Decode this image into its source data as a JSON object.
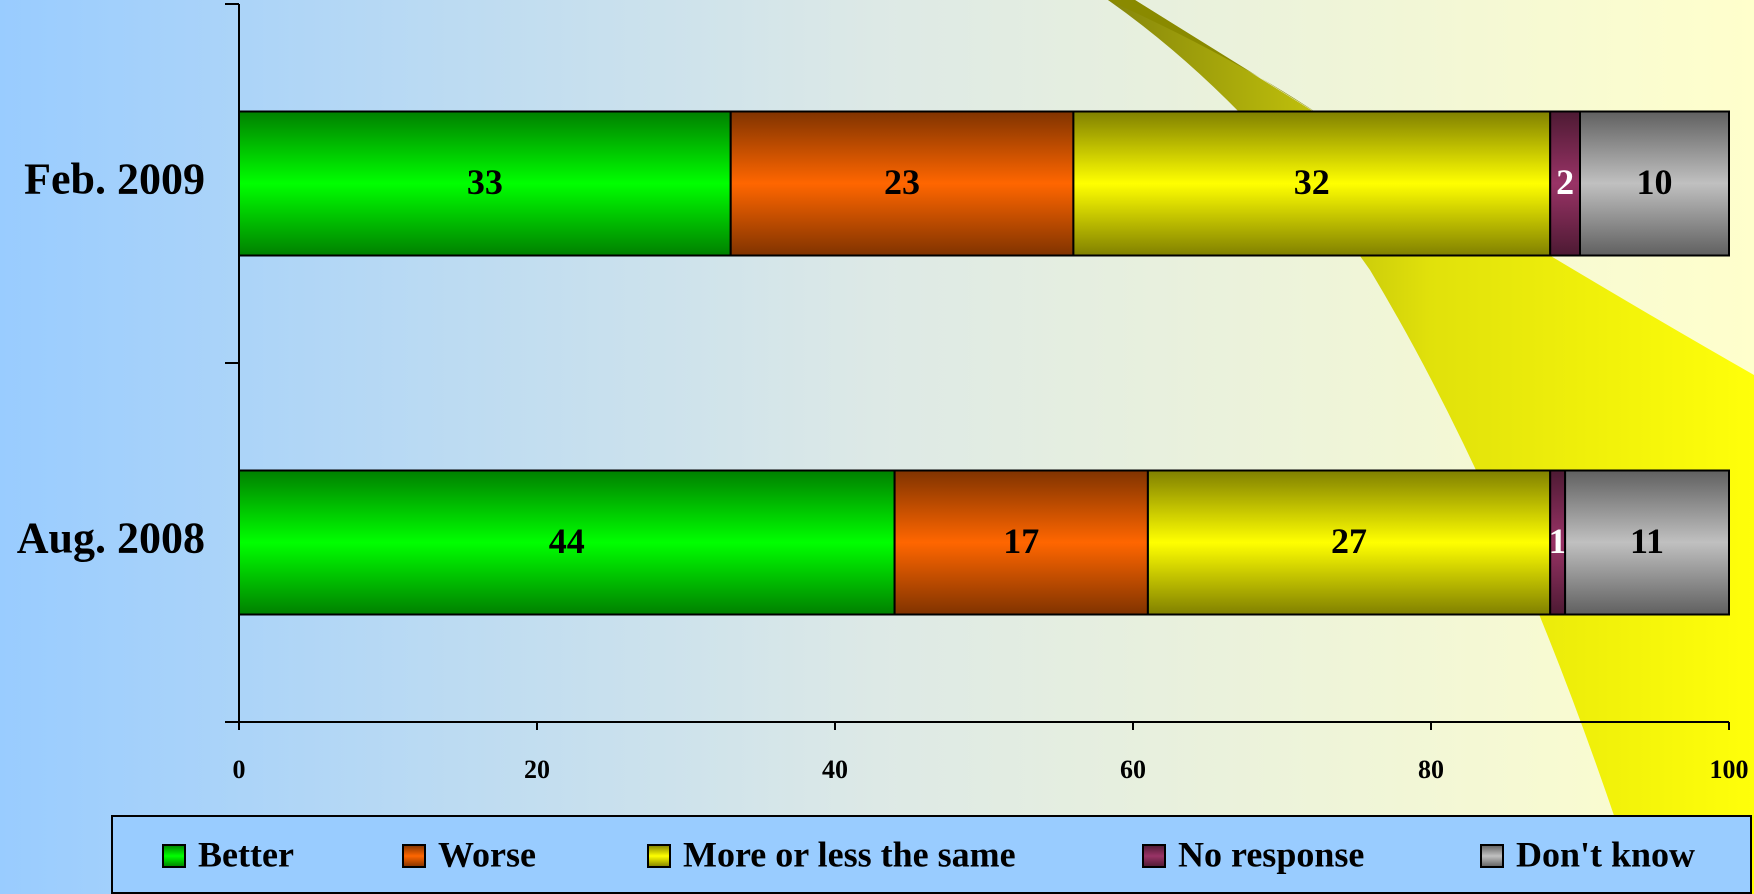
{
  "chart_data": {
    "type": "stacked-bar-horizontal",
    "categories": [
      "Feb. 2009",
      "Aug. 2008"
    ],
    "series": [
      {
        "name": "Better",
        "color": "#00ff00",
        "values": [
          33,
          44
        ]
      },
      {
        "name": "Worse",
        "color": "#ff6600",
        "values": [
          23,
          17
        ]
      },
      {
        "name": "More or less the same",
        "color": "#ffff00",
        "values": [
          32,
          27
        ]
      },
      {
        "name": "No response",
        "color": "#993366",
        "values": [
          2,
          1
        ]
      },
      {
        "name": "Don't know",
        "color": "#c0c0c0",
        "values": [
          10,
          11
        ]
      }
    ],
    "xlim": [
      0,
      100
    ],
    "xticks": [
      0,
      20,
      40,
      60,
      80,
      100
    ],
    "legend": "bottom"
  }
}
